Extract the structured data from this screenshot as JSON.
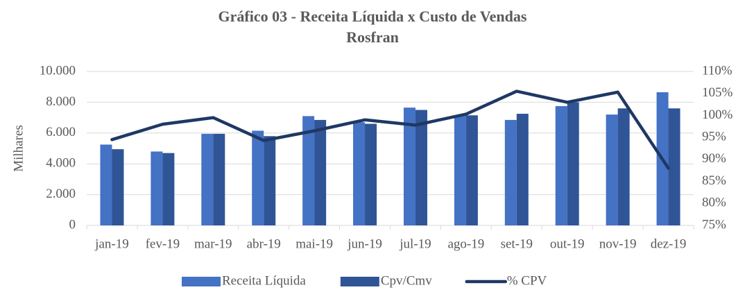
{
  "chart_data": {
    "type": "bar_line",
    "title": [
      "Gráfico 03 - Receita Líquida x Custo de Vendas",
      "Rosfran"
    ],
    "y_label": "Milhares",
    "categories": [
      "jan-19",
      "fev-19",
      "mar-19",
      "abr-19",
      "mai-19",
      "jun-19",
      "jul-19",
      "ago-19",
      "set-19",
      "out-19",
      "nov-19",
      "dez-19"
    ],
    "series": [
      {
        "name": "Receita Líquida",
        "color": "#4472c4",
        "kind": "bar",
        "values": [
          5250,
          4800,
          5950,
          6150,
          7100,
          6700,
          7650,
          7150,
          6850,
          7750,
          7200,
          8650
        ]
      },
      {
        "name": "Cpv/Cmv",
        "color": "#2f5597",
        "kind": "bar",
        "values": [
          4950,
          4700,
          5950,
          5800,
          6850,
          6600,
          7500,
          7150,
          7250,
          8000,
          7600,
          7600
        ]
      },
      {
        "name": "% CPV",
        "color": "#1f3864",
        "kind": "line",
        "axis": "y2",
        "values": [
          94.5,
          98,
          99.5,
          94.3,
          96.5,
          99,
          97.8,
          100.3,
          105.5,
          103,
          105.3,
          88
        ]
      }
    ],
    "ylim": [
      0,
      10000
    ],
    "yticks": [
      0,
      {
        "value": 2000,
        "label": "2.000"
      },
      {
        "value": 4000,
        "label": "4.000"
      },
      {
        "value": 6000,
        "label": "6.000"
      },
      {
        "value": 8000,
        "label": "8.000"
      },
      {
        "value": 10000,
        "label": "10.000"
      }
    ],
    "y2lim": [
      75,
      110
    ],
    "y2ticks": [
      {
        "value": 75,
        "label": "75%"
      },
      {
        "value": 80,
        "label": "80%"
      },
      {
        "value": 85,
        "label": "85%"
      },
      {
        "value": 90,
        "label": "90%"
      },
      {
        "value": 95,
        "label": "95%"
      },
      {
        "value": 100,
        "label": "100%"
      },
      {
        "value": 105,
        "label": "105%"
      },
      {
        "value": 110,
        "label": "110%"
      }
    ],
    "grid": true,
    "legend": "bottom"
  }
}
